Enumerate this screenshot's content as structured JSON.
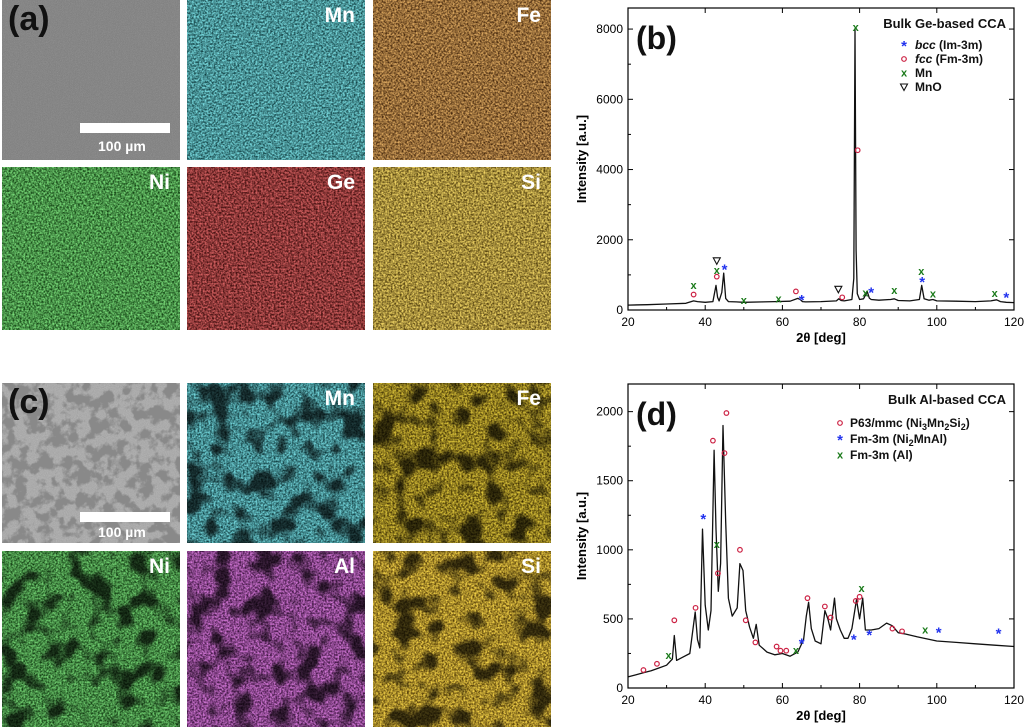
{
  "panel_a": {
    "label": "(a)",
    "scale_bar": "100 µm",
    "maps": [
      {
        "element": "Mn",
        "color": "#2fb0b8"
      },
      {
        "element": "Fe",
        "color": "#b8651e"
      },
      {
        "element": "Ni",
        "color": "#2fae2f"
      },
      {
        "element": "Ge",
        "color": "#a31d1d"
      },
      {
        "element": "Si",
        "color": "#d9a520"
      }
    ],
    "sem_color": "#7a7a7a"
  },
  "panel_c": {
    "label": "(c)",
    "scale_bar": "100 µm",
    "maps": [
      {
        "element": "Mn",
        "color": "#2aa6b0"
      },
      {
        "element": "Fe",
        "color": "#b0870a"
      },
      {
        "element": "Ni",
        "color": "#2a9e2a"
      },
      {
        "element": "Al",
        "color": "#a12ea8"
      },
      {
        "element": "Si",
        "color": "#e0a010"
      }
    ],
    "sem_color": "#9a9a9a"
  },
  "chart_data": [
    {
      "type": "line",
      "panel_label": "(b)",
      "title": "Bulk Ge-based CCA",
      "xlabel": "2θ [deg]",
      "ylabel": "Intensity [a.u.]",
      "xlim": [
        20,
        120
      ],
      "ylim": [
        0,
        8600
      ],
      "xticks": [
        20,
        40,
        60,
        80,
        100,
        120
      ],
      "yticks": [
        0,
        2000,
        4000,
        6000,
        8000
      ],
      "legend": [
        {
          "marker": "*",
          "color": "#2233ee",
          "label": "bcc (Im-3m)",
          "italic_part": "bcc",
          "rest": " (Im-3m)"
        },
        {
          "marker": "o",
          "color": "#cc2244",
          "label": "fcc (Fm-3m)",
          "italic_part": "fcc",
          "rest": " (Fm-3m)"
        },
        {
          "marker": "x",
          "color": "#1a7a1a",
          "label": "Mn"
        },
        {
          "marker": "v",
          "color": "#111111",
          "label": "MnO"
        }
      ],
      "series": [
        {
          "name": "Bulk Ge-based CCA",
          "x": [
            20,
            25,
            30,
            35,
            37,
            38,
            40,
            42,
            42.8,
            43.2,
            43.6,
            44.3,
            44.8,
            45.3,
            46,
            48,
            50,
            55,
            58,
            62,
            64,
            64.6,
            65.2,
            66,
            70,
            74,
            74.6,
            75.2,
            76,
            78,
            78.5,
            78.8,
            79.1,
            79.4,
            80,
            81,
            82,
            82.5,
            83,
            85,
            88,
            89,
            90,
            93,
            95.5,
            96.1,
            96.7,
            98,
            99,
            100,
            105,
            110,
            114,
            115.5,
            116.5,
            118,
            120
          ],
          "y": [
            140,
            150,
            170,
            190,
            260,
            240,
            220,
            240,
            700,
            360,
            260,
            500,
            1050,
            330,
            240,
            230,
            220,
            230,
            240,
            250,
            330,
            300,
            240,
            230,
            240,
            260,
            320,
            270,
            260,
            300,
            900,
            8000,
            1700,
            460,
            300,
            320,
            520,
            340,
            300,
            280,
            300,
            320,
            270,
            260,
            300,
            700,
            320,
            280,
            300,
            260,
            250,
            240,
            260,
            290,
            240,
            220,
            210
          ]
        }
      ],
      "markers": [
        {
          "type": "x",
          "x": 37,
          "y": 700
        },
        {
          "type": "o",
          "x": 37,
          "y": 440
        },
        {
          "type": "v",
          "x": 43,
          "y": 1400
        },
        {
          "type": "x",
          "x": 43,
          "y": 1120
        },
        {
          "type": "o",
          "x": 43,
          "y": 950
        },
        {
          "type": "*",
          "x": 45,
          "y": 1180
        },
        {
          "type": "x",
          "x": 50,
          "y": 270
        },
        {
          "type": "x",
          "x": 59,
          "y": 310
        },
        {
          "type": "o",
          "x": 63.5,
          "y": 530
        },
        {
          "type": "*",
          "x": 65,
          "y": 320
        },
        {
          "type": "v",
          "x": 74.5,
          "y": 590
        },
        {
          "type": "o",
          "x": 75.5,
          "y": 360
        },
        {
          "type": "x",
          "x": 79,
          "y": 8050
        },
        {
          "type": "o",
          "x": 79.5,
          "y": 4550
        },
        {
          "type": "x",
          "x": 81.5,
          "y": 480
        },
        {
          "type": "*",
          "x": 83,
          "y": 520
        },
        {
          "type": "x",
          "x": 89,
          "y": 560
        },
        {
          "type": "x",
          "x": 96,
          "y": 1100
        },
        {
          "type": "*",
          "x": 96.2,
          "y": 830
        },
        {
          "type": "x",
          "x": 99,
          "y": 460
        },
        {
          "type": "x",
          "x": 115,
          "y": 470
        },
        {
          "type": "*",
          "x": 118,
          "y": 380
        }
      ]
    },
    {
      "type": "line",
      "panel_label": "(d)",
      "title": "Bulk Al-based CCA",
      "xlabel": "2θ [deg]",
      "ylabel": "Intensity [a.u.]",
      "xlim": [
        20,
        120
      ],
      "ylim": [
        0,
        2200
      ],
      "xticks": [
        20,
        40,
        60,
        80,
        100,
        120
      ],
      "yticks": [
        0,
        500,
        1000,
        1500,
        2000
      ],
      "legend": [
        {
          "marker": "o",
          "color": "#cc2244",
          "label": "P63/mmc (Ni3Mn2Si2)",
          "text_main": "P63/mmc (Ni",
          "sub1": "3",
          "mid1": "Mn",
          "sub2": "2",
          "mid2": "Si",
          "sub3": "2",
          "tail": ")"
        },
        {
          "marker": "*",
          "color": "#2233ee",
          "label": "Fm-3m (Ni2MnAl)",
          "text_main": "Fm-3m (Ni",
          "sub1": "2",
          "mid1": "MnAl)"
        },
        {
          "marker": "x",
          "color": "#1a7a1a",
          "label": "Fm-3m (Al)"
        }
      ],
      "series": [
        {
          "name": "Bulk Al-based CCA",
          "x": [
            20,
            22,
            24,
            26,
            28,
            30,
            31.5,
            32,
            32.6,
            34,
            36,
            37.4,
            38,
            38.6,
            39.3,
            40,
            40.8,
            41.5,
            42.3,
            42.8,
            43.4,
            44,
            44.6,
            45.3,
            46,
            47,
            48.3,
            49,
            49.8,
            50.5,
            51.5,
            52.5,
            53.2,
            54,
            56,
            58,
            60,
            62,
            64,
            65.5,
            66.2,
            66.8,
            67.5,
            68.5,
            70,
            71,
            71.8,
            72.5,
            73.5,
            74,
            75,
            76,
            77,
            78,
            79.2,
            80,
            80.8,
            81.5,
            83,
            85,
            87,
            88.5,
            90,
            92,
            95,
            100,
            105,
            110,
            115,
            120
          ],
          "y": [
            80,
            95,
            110,
            125,
            145,
            165,
            210,
            380,
            200,
            220,
            250,
            550,
            350,
            290,
            1150,
            600,
            420,
            560,
            1720,
            1150,
            700,
            900,
            1900,
            1200,
            650,
            520,
            580,
            900,
            850,
            560,
            440,
            360,
            460,
            310,
            260,
            240,
            250,
            230,
            260,
            350,
            520,
            620,
            430,
            340,
            320,
            560,
            500,
            420,
            650,
            500,
            420,
            360,
            360,
            430,
            640,
            500,
            650,
            420,
            420,
            430,
            470,
            450,
            400,
            390,
            370,
            340,
            330,
            320,
            310,
            300
          ]
        }
      ],
      "markers": [
        {
          "type": "o",
          "x": 24,
          "y": 130
        },
        {
          "type": "o",
          "x": 27.5,
          "y": 175
        },
        {
          "type": "x",
          "x": 30.5,
          "y": 235
        },
        {
          "type": "o",
          "x": 32,
          "y": 490
        },
        {
          "type": "o",
          "x": 37.5,
          "y": 580
        },
        {
          "type": "*",
          "x": 39.5,
          "y": 1230
        },
        {
          "type": "o",
          "x": 42,
          "y": 1790
        },
        {
          "type": "x",
          "x": 43,
          "y": 1040
        },
        {
          "type": "o",
          "x": 43.3,
          "y": 830
        },
        {
          "type": "o",
          "x": 45,
          "y": 1700
        },
        {
          "type": "o",
          "x": 45.5,
          "y": 1990
        },
        {
          "type": "o",
          "x": 49,
          "y": 1000
        },
        {
          "type": "o",
          "x": 50.5,
          "y": 490
        },
        {
          "type": "o",
          "x": 53,
          "y": 330
        },
        {
          "type": "o",
          "x": 58.5,
          "y": 300
        },
        {
          "type": "o",
          "x": 59.5,
          "y": 270
        },
        {
          "type": "o",
          "x": 61,
          "y": 270
        },
        {
          "type": "x",
          "x": 63.5,
          "y": 270
        },
        {
          "type": "*",
          "x": 65,
          "y": 330
        },
        {
          "type": "o",
          "x": 66.5,
          "y": 650
        },
        {
          "type": "o",
          "x": 71,
          "y": 590
        },
        {
          "type": "o",
          "x": 72.5,
          "y": 510
        },
        {
          "type": "*",
          "x": 78.5,
          "y": 360
        },
        {
          "type": "o",
          "x": 79,
          "y": 630
        },
        {
          "type": "o",
          "x": 80,
          "y": 660
        },
        {
          "type": "x",
          "x": 80.5,
          "y": 720
        },
        {
          "type": "*",
          "x": 82.5,
          "y": 390
        },
        {
          "type": "o",
          "x": 88.5,
          "y": 430
        },
        {
          "type": "o",
          "x": 91,
          "y": 410
        },
        {
          "type": "x",
          "x": 97,
          "y": 420
        },
        {
          "type": "*",
          "x": 100.5,
          "y": 410
        },
        {
          "type": "*",
          "x": 116,
          "y": 400
        }
      ]
    }
  ]
}
